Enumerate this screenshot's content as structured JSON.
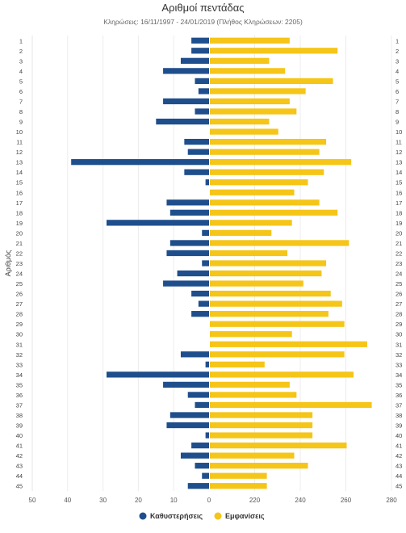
{
  "chart_data": {
    "type": "bar",
    "orientation": "horizontal-diverging",
    "title": "Αριθμοί πεντάδας",
    "subtitle": "Κληρώσεις: 16/11/1997 - 24/01/2019 (Πλήθος Κληρώσεων: 2205)",
    "ylabel": "Αριθμός",
    "xlabel": "",
    "categories": [
      "1",
      "2",
      "3",
      "4",
      "5",
      "6",
      "7",
      "8",
      "9",
      "10",
      "11",
      "12",
      "13",
      "14",
      "15",
      "16",
      "17",
      "18",
      "19",
      "20",
      "21",
      "22",
      "23",
      "24",
      "25",
      "26",
      "27",
      "28",
      "29",
      "30",
      "31",
      "32",
      "33",
      "34",
      "35",
      "36",
      "37",
      "38",
      "39",
      "40",
      "41",
      "42",
      "43",
      "44",
      "45"
    ],
    "series": [
      {
        "name": "Καθυστερήσεις",
        "side": "left",
        "color": "#1f4e8c",
        "values": [
          5,
          5,
          8,
          13,
          4,
          3,
          13,
          4,
          15,
          0,
          7,
          6,
          39,
          7,
          1,
          0,
          12,
          11,
          29,
          2,
          11,
          12,
          2,
          9,
          13,
          5,
          3,
          5,
          0,
          0,
          0,
          8,
          1,
          29,
          13,
          6,
          4,
          11,
          12,
          1,
          5,
          8,
          4,
          2,
          6
        ]
      },
      {
        "name": "Εμφανίσεις",
        "side": "right",
        "color": "#f5c518",
        "values": [
          235,
          256,
          226,
          233,
          254,
          242,
          235,
          238,
          226,
          230,
          251,
          248,
          262,
          250,
          243,
          237,
          248,
          256,
          236,
          227,
          261,
          234,
          251,
          249,
          241,
          253,
          258,
          252,
          259,
          236,
          269,
          259,
          224,
          263,
          235,
          238,
          271,
          245,
          245,
          245,
          260,
          237,
          243,
          225,
          225
        ]
      }
    ],
    "x_left_ticks": [
      "50",
      "40",
      "30",
      "20",
      "10",
      "0"
    ],
    "x_right_ticks": [
      "220",
      "240",
      "260",
      "280"
    ],
    "x_left_range": [
      0,
      50
    ],
    "x_right_range": [
      200,
      280
    ],
    "grid": true,
    "legend": "bottom-center"
  }
}
